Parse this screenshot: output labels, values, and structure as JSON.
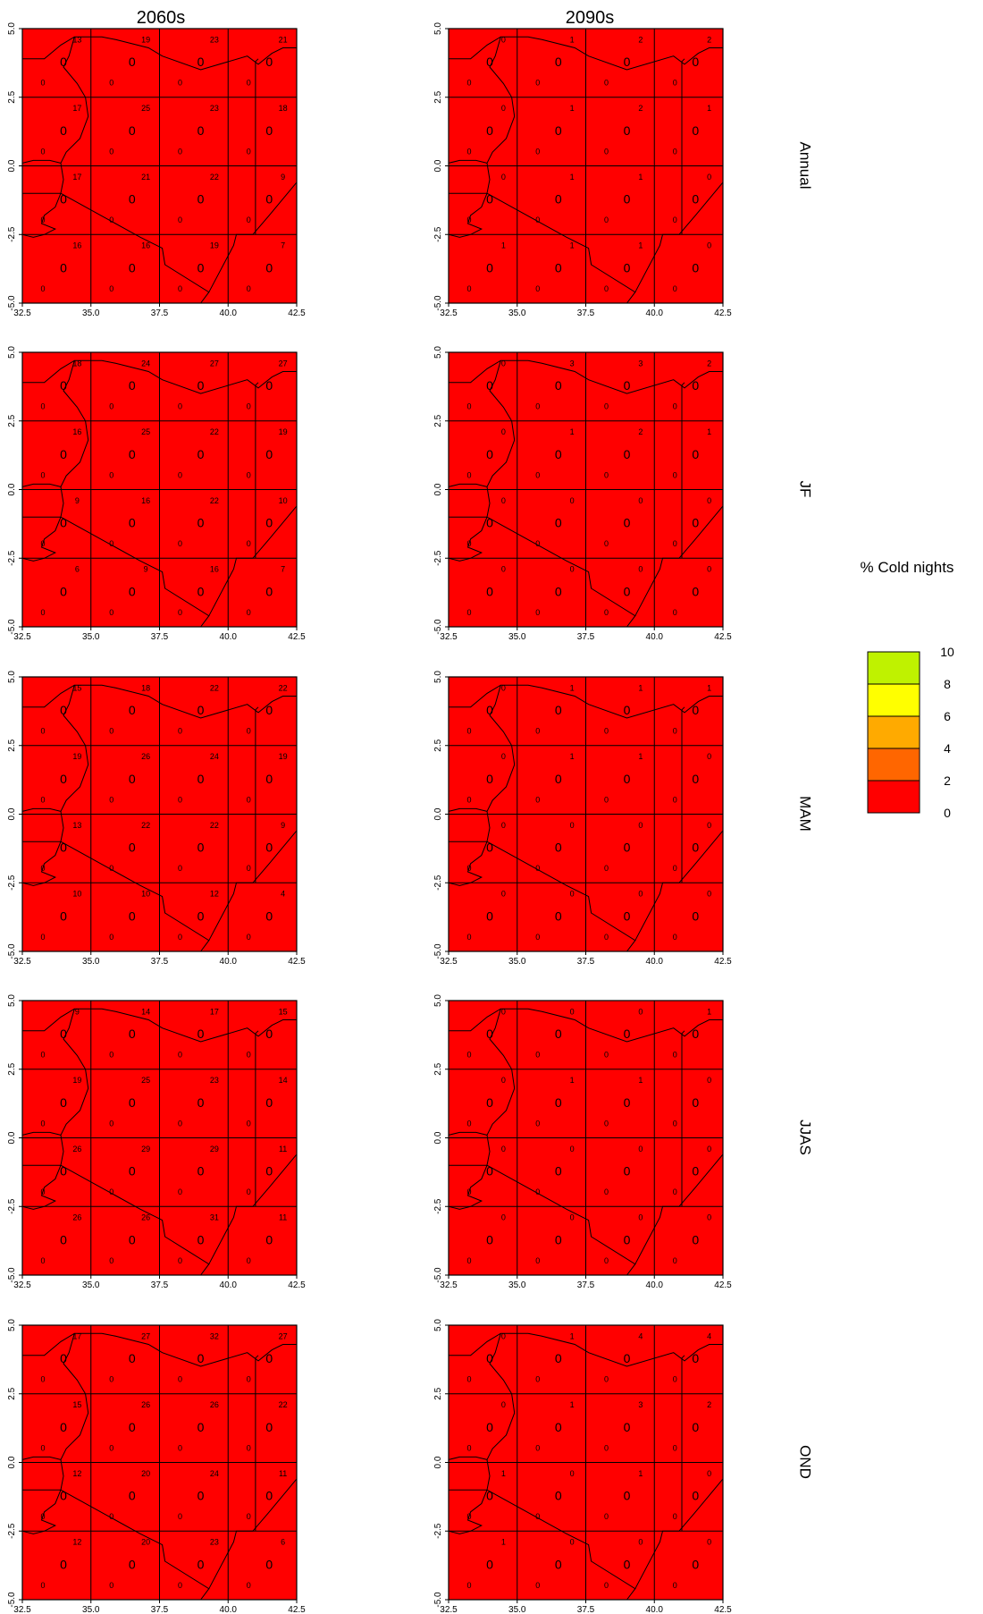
{
  "columns": [
    "2060s",
    "2090s"
  ],
  "rows": [
    "Annual",
    "JF",
    "MAM",
    "JJAS",
    "OND"
  ],
  "x_ticks": [
    "32.5",
    "35.0",
    "37.5",
    "40.0",
    "42.5"
  ],
  "y_ticks": [
    "5.0",
    "2.5",
    "0.0",
    "-2.5",
    "-5.0"
  ],
  "legend": {
    "title": "% Cold nights",
    "labels": [
      "10",
      "8",
      "6",
      "4",
      "2",
      "0"
    ],
    "colors": [
      "#bff200",
      "#ffff00",
      "#ffaa00",
      "#ff6600",
      "#ff0000"
    ]
  },
  "fill_color": "#ff0000",
  "center_value": "0",
  "corner_value": "0",
  "panels": [
    {
      "row": "Annual",
      "period": "2060s",
      "grid_values": [
        [
          "13",
          "19",
          "23",
          "21"
        ],
        [
          "17",
          "25",
          "23",
          "18"
        ],
        [
          "17",
          "21",
          "22",
          "9"
        ],
        [
          "16",
          "16",
          "19",
          "7"
        ]
      ]
    },
    {
      "row": "Annual",
      "period": "2090s",
      "grid_values": [
        [
          "0",
          "1",
          "2",
          "2"
        ],
        [
          "0",
          "1",
          "2",
          "1"
        ],
        [
          "0",
          "1",
          "1",
          "0"
        ],
        [
          "1",
          "1",
          "1",
          "0"
        ]
      ]
    },
    {
      "row": "JF",
      "period": "2060s",
      "grid_values": [
        [
          "18",
          "24",
          "27",
          "27"
        ],
        [
          "16",
          "25",
          "22",
          "19"
        ],
        [
          "9",
          "16",
          "22",
          "10"
        ],
        [
          "6",
          "9",
          "16",
          "7"
        ]
      ]
    },
    {
      "row": "JF",
      "period": "2090s",
      "grid_values": [
        [
          "0",
          "3",
          "3",
          "2"
        ],
        [
          "0",
          "1",
          "2",
          "1"
        ],
        [
          "0",
          "0",
          "0",
          "0"
        ],
        [
          "0",
          "0",
          "0",
          "0"
        ]
      ]
    },
    {
      "row": "MAM",
      "period": "2060s",
      "grid_values": [
        [
          "15",
          "18",
          "22",
          "22"
        ],
        [
          "19",
          "26",
          "24",
          "19"
        ],
        [
          "13",
          "22",
          "22",
          "9"
        ],
        [
          "10",
          "10",
          "12",
          "4"
        ]
      ]
    },
    {
      "row": "MAM",
      "period": "2090s",
      "grid_values": [
        [
          "0",
          "1",
          "1",
          "1"
        ],
        [
          "0",
          "1",
          "1",
          "0"
        ],
        [
          "0",
          "0",
          "0",
          "0"
        ],
        [
          "0",
          "0",
          "0",
          "0"
        ]
      ]
    },
    {
      "row": "JJAS",
      "period": "2060s",
      "grid_values": [
        [
          "9",
          "14",
          "17",
          "15"
        ],
        [
          "19",
          "25",
          "23",
          "14"
        ],
        [
          "26",
          "29",
          "29",
          "11"
        ],
        [
          "26",
          "26",
          "31",
          "11"
        ]
      ]
    },
    {
      "row": "JJAS",
      "period": "2090s",
      "grid_values": [
        [
          "0",
          "0",
          "0",
          "1"
        ],
        [
          "0",
          "1",
          "1",
          "0"
        ],
        [
          "0",
          "0",
          "0",
          "0"
        ],
        [
          "0",
          "0",
          "0",
          "0"
        ]
      ]
    },
    {
      "row": "OND",
      "period": "2060s",
      "grid_values": [
        [
          "17",
          "27",
          "32",
          "27"
        ],
        [
          "15",
          "26",
          "26",
          "22"
        ],
        [
          "12",
          "20",
          "24",
          "11"
        ],
        [
          "12",
          "20",
          "23",
          "6"
        ]
      ]
    },
    {
      "row": "OND",
      "period": "2090s",
      "grid_values": [
        [
          "0",
          "1",
          "4",
          "4"
        ],
        [
          "0",
          "1",
          "3",
          "2"
        ],
        [
          "1",
          "0",
          "1",
          "0"
        ],
        [
          "1",
          "0",
          "0",
          "0"
        ]
      ]
    }
  ]
}
